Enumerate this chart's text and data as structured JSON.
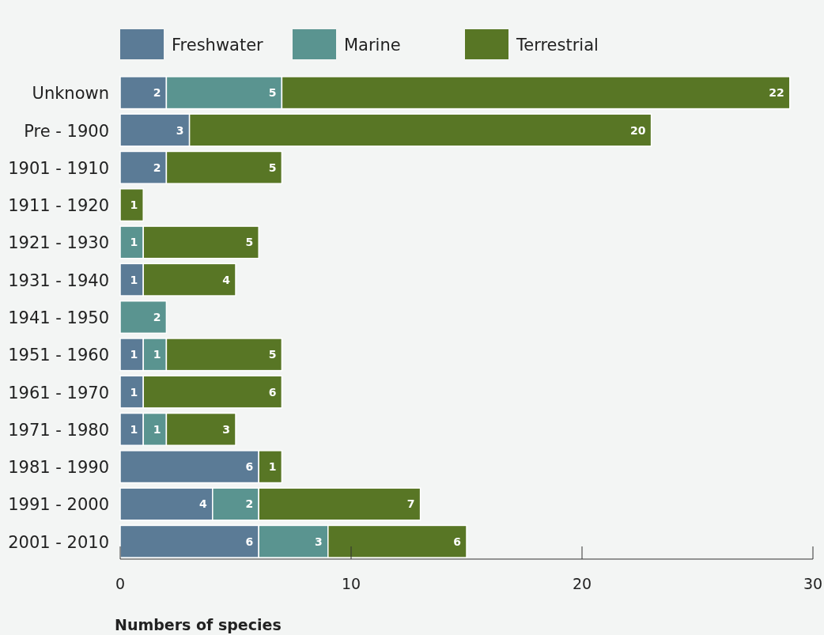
{
  "chart_data": {
    "type": "bar",
    "orientation": "horizontal",
    "stacked": true,
    "xlabel": "Numbers of species",
    "categories": [
      "Unknown",
      "Pre - 1900",
      "1901 - 1910",
      "1911 - 1920",
      "1921 - 1930",
      "1931 - 1940",
      "1941 - 1950",
      "1951 - 1960",
      "1961 - 1970",
      "1971 - 1980",
      "1981 - 1990",
      "1991 - 2000",
      "2001 - 2010"
    ],
    "series": [
      {
        "name": "Freshwater",
        "color": "#5b7b96",
        "values": [
          2,
          3,
          2,
          null,
          null,
          1,
          null,
          1,
          1,
          1,
          6,
          4,
          6
        ]
      },
      {
        "name": "Marine",
        "color": "#5a9490",
        "values": [
          5,
          null,
          null,
          null,
          1,
          null,
          2,
          1,
          null,
          1,
          null,
          2,
          3
        ]
      },
      {
        "name": "Terrestrial",
        "color": "#587625",
        "values": [
          22,
          20,
          5,
          1,
          5,
          4,
          null,
          5,
          6,
          3,
          1,
          7,
          6
        ]
      }
    ],
    "xlim": [
      0,
      30
    ],
    "xticks": [
      0,
      10,
      20,
      30
    ],
    "data_labels": true,
    "legend": "top",
    "grid": false
  }
}
